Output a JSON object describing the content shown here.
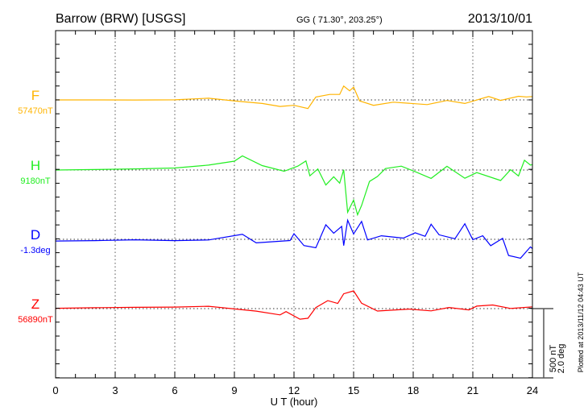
{
  "header": {
    "station": "Barrow (BRW)  [USGS]",
    "coords": "GG ( 71.30°, 203.25°)",
    "date": "2013/10/01"
  },
  "footer": {
    "plotted": "Plotted at 2013/11/12 04:43 UT",
    "scale_nt": "500 nT",
    "scale_deg": "2.0 deg"
  },
  "chart_data": {
    "type": "line",
    "title": "Barrow (BRW) [USGS] 2013/10/01",
    "xlabel": "U T (hour)",
    "xlim": [
      0,
      24
    ],
    "xticks": [
      "0",
      "3",
      "6",
      "9",
      "12",
      "15",
      "18",
      "21",
      "24"
    ],
    "grid": "vertical dotted every 3 h",
    "scale": {
      "nT_per_division": 500,
      "deg_per_division": 2.0
    },
    "series": [
      {
        "name": "F",
        "baseline_label": "57470nT",
        "unit": "nT",
        "color": "#ffb400",
        "x": [
          0,
          2,
          4,
          6,
          7.7,
          9.1,
          10.4,
          11.3,
          12.0,
          12.7,
          13.1,
          13.8,
          14.3,
          14.5,
          14.8,
          15.0,
          15.3,
          16.0,
          17.0,
          18.7,
          19.7,
          20.6,
          21.8,
          22.4,
          23.3,
          23.7,
          24
        ],
        "y": [
          0,
          2,
          3,
          5,
          17,
          -5,
          -23,
          -46,
          -40,
          -65,
          17,
          35,
          35,
          97,
          64,
          93,
          -5,
          -35,
          -12,
          -29,
          0,
          -23,
          25,
          -5,
          23,
          17,
          20
        ]
      },
      {
        "name": "H",
        "baseline_label": "9180nT",
        "unit": "nT",
        "color": "#22ee22",
        "x": [
          0,
          2,
          4,
          6,
          7.7,
          9.0,
          9.4,
          10.4,
          11.5,
          12.2,
          12.6,
          12.8,
          13.2,
          13.6,
          14.0,
          14.3,
          14.5,
          14.7,
          15.0,
          15.2,
          15.4,
          15.8,
          16.2,
          16.6,
          17.4,
          18.1,
          18.9,
          19.7,
          20.6,
          21.2,
          22.4,
          22.9,
          23.3,
          23.6,
          23.9,
          24
        ],
        "y": [
          0,
          2,
          5,
          10,
          31,
          60,
          99,
          31,
          -8,
          31,
          70,
          -37,
          12,
          -105,
          -47,
          -95,
          0,
          -308,
          -221,
          -328,
          -260,
          -85,
          -47,
          12,
          31,
          -8,
          -56,
          31,
          -56,
          -17,
          -76,
          0,
          -47,
          66,
          31,
          35
        ]
      },
      {
        "name": "D",
        "baseline_label": "-1.3deg",
        "unit": "deg",
        "color": "#0000ff",
        "x": [
          0,
          2,
          4,
          6,
          7.7,
          9.4,
          10.1,
          11.8,
          12.0,
          12.5,
          13.1,
          13.6,
          14.0,
          14.4,
          14.5,
          14.7,
          15.0,
          15.4,
          15.7,
          16.4,
          17.5,
          18.1,
          18.6,
          18.9,
          19.3,
          20.1,
          20.6,
          21.0,
          21.5,
          21.9,
          22.5,
          22.8,
          23.4,
          23.9,
          24
        ],
        "y": [
          -0.05,
          -0.03,
          0,
          -0.02,
          0,
          0.16,
          -0.09,
          -0.03,
          0.16,
          -0.19,
          -0.26,
          0.4,
          0.16,
          0.36,
          -0.19,
          0.55,
          0.16,
          0.53,
          0,
          0.12,
          0.05,
          0.2,
          0.09,
          0.43,
          0.12,
          0,
          0.43,
          -0.03,
          0.09,
          -0.19,
          0.03,
          -0.46,
          -0.53,
          -0.2,
          -0.25
        ]
      },
      {
        "name": "Z",
        "baseline_label": "56890nT",
        "unit": "nT",
        "color": "#ff0000",
        "x": [
          0,
          2,
          4,
          6,
          7.7,
          9.1,
          10.1,
          11.3,
          11.6,
          12.3,
          12.7,
          13.1,
          13.7,
          14.2,
          14.5,
          15.0,
          15.4,
          16.2,
          17.8,
          18.9,
          19.8,
          20.8,
          21.2,
          22.0,
          22.9,
          24
        ],
        "y": [
          3,
          5,
          6,
          7,
          12,
          -8,
          -21,
          -47,
          -21,
          -74,
          -66,
          12,
          62,
          41,
          109,
          128,
          37,
          -21,
          -8,
          -21,
          4,
          -12,
          17,
          27,
          4,
          17
        ]
      }
    ]
  }
}
